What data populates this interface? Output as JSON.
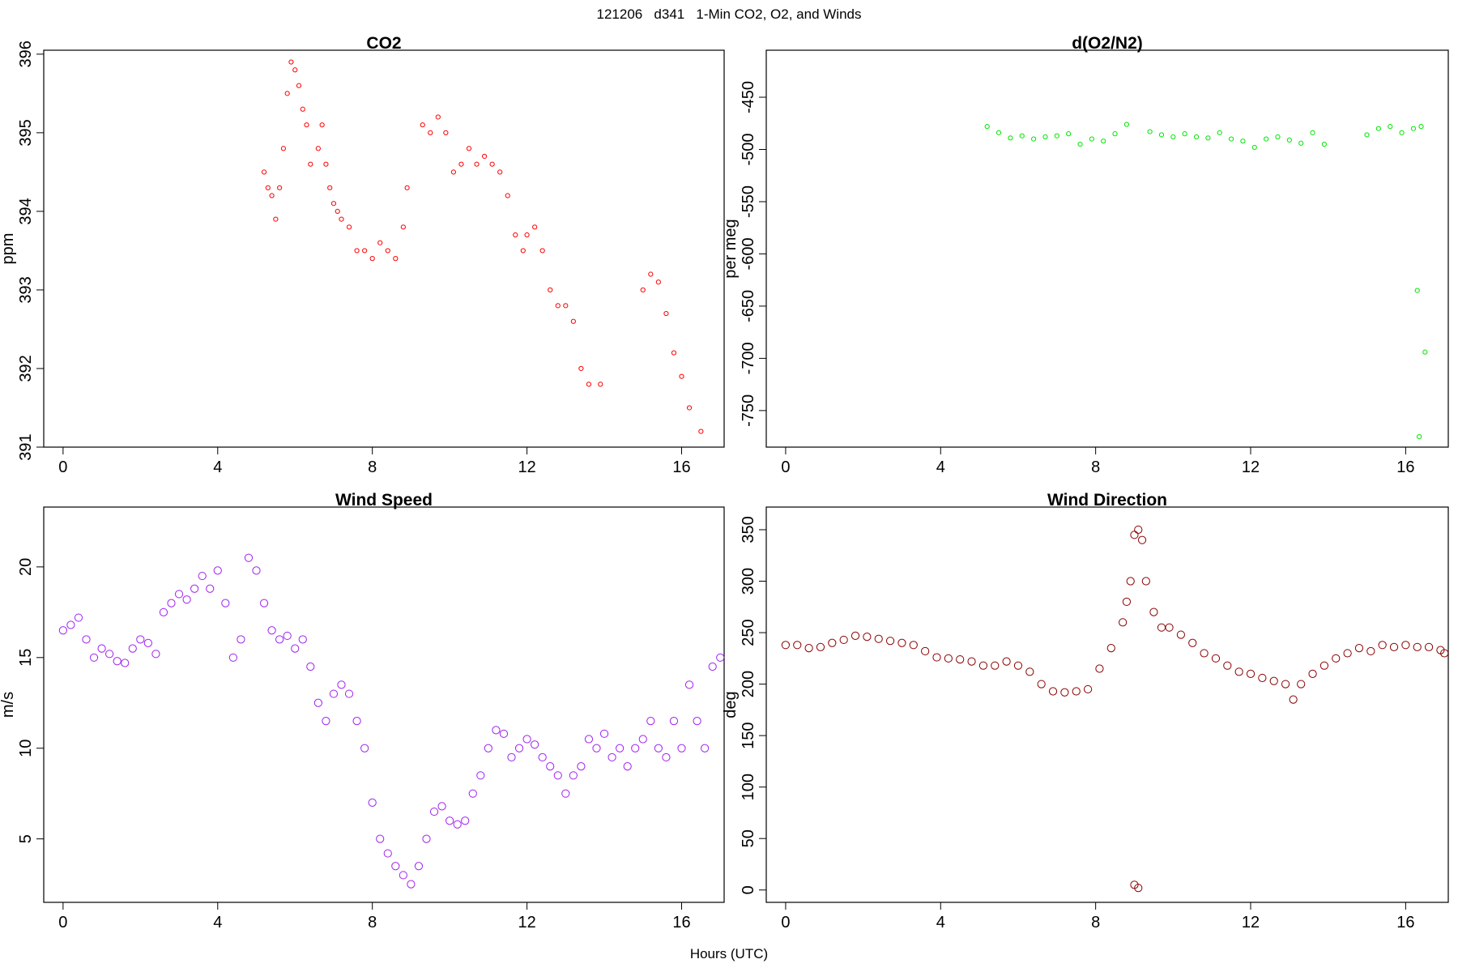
{
  "title": "121206   d341   1-Min CO2, O2, and Winds",
  "xlabel": "Hours (UTC)",
  "chart_data": [
    {
      "type": "scatter",
      "title": "CO2",
      "ylabel": "ppm",
      "xlim": [
        -0.5,
        17.1
      ],
      "ylim": [
        391,
        396.05
      ],
      "xticks": [
        0,
        4,
        8,
        12,
        16
      ],
      "yticks": [
        391,
        392,
        393,
        394,
        395,
        396
      ],
      "color": "#ff0000",
      "x": [
        5.2,
        5.3,
        5.4,
        5.5,
        5.6,
        5.7,
        5.8,
        5.9,
        6.0,
        6.1,
        6.2,
        6.3,
        6.4,
        6.6,
        6.7,
        6.8,
        6.9,
        7.0,
        7.1,
        7.2,
        7.4,
        7.6,
        7.8,
        8.0,
        8.2,
        8.4,
        8.6,
        8.8,
        8.9,
        9.3,
        9.5,
        9.7,
        9.9,
        10.1,
        10.3,
        10.5,
        10.7,
        10.9,
        11.1,
        11.3,
        11.5,
        11.7,
        11.9,
        12.0,
        12.2,
        12.4,
        12.6,
        12.8,
        13.0,
        13.2,
        13.4,
        13.6,
        13.9,
        15.0,
        15.2,
        15.4,
        15.6,
        15.8,
        16.0,
        16.2,
        16.5
      ],
      "y": [
        394.5,
        394.3,
        394.2,
        393.9,
        394.3,
        394.8,
        395.5,
        395.9,
        395.8,
        395.6,
        395.3,
        395.1,
        394.6,
        394.8,
        395.1,
        394.6,
        394.3,
        394.1,
        394.0,
        393.9,
        393.8,
        393.5,
        393.5,
        393.4,
        393.6,
        393.5,
        393.4,
        393.8,
        394.3,
        395.1,
        395.0,
        395.2,
        395.0,
        394.5,
        394.6,
        394.8,
        394.6,
        394.7,
        394.6,
        394.5,
        394.2,
        393.7,
        393.5,
        393.7,
        393.8,
        393.5,
        393.0,
        392.8,
        392.8,
        392.6,
        392.0,
        391.8,
        391.8,
        393.0,
        393.2,
        393.1,
        392.7,
        392.2,
        391.9,
        391.5,
        391.2
      ]
    },
    {
      "type": "scatter",
      "title": "d(O2/N2)",
      "ylabel": "per meg",
      "xlim": [
        -0.5,
        17.1
      ],
      "ylim": [
        -785,
        -405
      ],
      "xticks": [
        0,
        4,
        8,
        12,
        16
      ],
      "yticks": [
        -750,
        -700,
        -650,
        -600,
        -550,
        -500,
        -450
      ],
      "color": "#00e600",
      "x": [
        5.2,
        5.5,
        5.8,
        6.1,
        6.4,
        6.7,
        7.0,
        7.3,
        7.6,
        7.9,
        8.2,
        8.5,
        8.8,
        9.4,
        9.7,
        10.0,
        10.3,
        10.6,
        10.9,
        11.2,
        11.5,
        11.8,
        12.1,
        12.4,
        12.7,
        13.0,
        13.3,
        13.6,
        13.9,
        15.0,
        15.3,
        15.6,
        15.9,
        16.2,
        16.4,
        16.3,
        16.35,
        16.5
      ],
      "y": [
        -478,
        -484,
        -489,
        -487,
        -490,
        -488,
        -487,
        -485,
        -495,
        -490,
        -492,
        -485,
        -476,
        -483,
        -486,
        -488,
        -485,
        -488,
        -489,
        -484,
        -490,
        -492,
        -498,
        -490,
        -488,
        -491,
        -494,
        -484,
        -495,
        -486,
        -480,
        -478,
        -484,
        -480,
        -478,
        -635,
        -775,
        -694
      ]
    },
    {
      "type": "scatter",
      "title": "Wind Speed",
      "ylabel": "m/s",
      "xlim": [
        -0.5,
        17.1
      ],
      "ylim": [
        1.5,
        23.3
      ],
      "xticks": [
        0,
        4,
        8,
        12,
        16
      ],
      "yticks": [
        5,
        10,
        15,
        20
      ],
      "color": "#a020f0",
      "x": [
        0.0,
        0.2,
        0.4,
        0.6,
        0.8,
        1.0,
        1.2,
        1.4,
        1.6,
        1.8,
        2.0,
        2.2,
        2.4,
        2.6,
        2.8,
        3.0,
        3.2,
        3.4,
        3.6,
        3.8,
        4.0,
        4.2,
        4.4,
        4.6,
        4.8,
        5.0,
        5.2,
        5.4,
        5.6,
        5.8,
        6.0,
        6.2,
        6.4,
        6.6,
        6.8,
        7.0,
        7.2,
        7.4,
        7.6,
        7.8,
        8.0,
        8.2,
        8.4,
        8.6,
        8.8,
        9.0,
        9.2,
        9.4,
        9.6,
        9.8,
        10.0,
        10.2,
        10.4,
        10.6,
        10.8,
        11.0,
        11.2,
        11.4,
        11.6,
        11.8,
        12.0,
        12.2,
        12.4,
        12.6,
        12.8,
        13.0,
        13.2,
        13.4,
        13.6,
        13.8,
        14.0,
        14.2,
        14.4,
        14.6,
        14.8,
        15.0,
        15.2,
        15.4,
        15.6,
        15.8,
        16.0,
        16.2,
        16.4,
        16.6,
        16.8,
        17.0
      ],
      "y": [
        16.5,
        16.8,
        17.2,
        16.0,
        15.0,
        15.5,
        15.2,
        14.8,
        14.7,
        15.5,
        16.0,
        15.8,
        15.2,
        17.5,
        18.0,
        18.5,
        18.2,
        18.8,
        19.5,
        18.8,
        19.8,
        18.0,
        15.0,
        16.0,
        20.5,
        19.8,
        18.0,
        16.5,
        16.0,
        16.2,
        15.5,
        16.0,
        14.5,
        12.5,
        11.5,
        13.0,
        13.5,
        13.0,
        11.5,
        10.0,
        7.0,
        5.0,
        4.2,
        3.5,
        3.0,
        2.5,
        3.5,
        5.0,
        6.5,
        6.8,
        6.0,
        5.8,
        6.0,
        7.5,
        8.5,
        10.0,
        11.0,
        10.8,
        9.5,
        10.0,
        10.5,
        10.2,
        9.5,
        9.0,
        8.5,
        7.5,
        8.5,
        9.0,
        10.5,
        10.0,
        10.8,
        9.5,
        10.0,
        9.0,
        10.0,
        10.5,
        11.5,
        10.0,
        9.5,
        11.5,
        10.0,
        13.5,
        11.5,
        10.0,
        14.5,
        15.0
      ]
    },
    {
      "type": "scatter",
      "title": "Wind Direction",
      "ylabel": "deg",
      "xlim": [
        -0.5,
        17.1
      ],
      "ylim": [
        -12,
        372
      ],
      "xticks": [
        0,
        4,
        8,
        12,
        16
      ],
      "yticks": [
        0,
        50,
        100,
        150,
        200,
        250,
        300,
        350
      ],
      "color": "#8b0000",
      "x": [
        0.0,
        0.3,
        0.6,
        0.9,
        1.2,
        1.5,
        1.8,
        2.1,
        2.4,
        2.7,
        3.0,
        3.3,
        3.6,
        3.9,
        4.2,
        4.5,
        4.8,
        5.1,
        5.4,
        5.7,
        6.0,
        6.3,
        6.6,
        6.9,
        7.2,
        7.5,
        7.8,
        8.1,
        8.4,
        8.7,
        8.8,
        8.9,
        9.0,
        9.1,
        9.2,
        9.3,
        9.5,
        9.7,
        9.9,
        10.2,
        10.5,
        10.8,
        11.1,
        11.4,
        11.7,
        12.0,
        12.3,
        12.6,
        12.9,
        13.1,
        13.3,
        13.6,
        13.9,
        14.2,
        14.5,
        14.8,
        15.1,
        15.4,
        15.7,
        16.0,
        16.3,
        16.6,
        16.9,
        17.0,
        9.0,
        9.1
      ],
      "y": [
        238,
        238,
        235,
        236,
        240,
        243,
        247,
        246,
        244,
        242,
        240,
        238,
        232,
        226,
        225,
        224,
        222,
        218,
        218,
        222,
        218,
        212,
        200,
        193,
        192,
        193,
        195,
        215,
        235,
        260,
        280,
        300,
        345,
        350,
        340,
        300,
        270,
        255,
        255,
        248,
        240,
        230,
        225,
        218,
        212,
        210,
        206,
        203,
        200,
        185,
        200,
        210,
        218,
        225,
        230,
        235,
        232,
        238,
        236,
        238,
        236,
        236,
        233,
        230,
        5,
        2
      ]
    }
  ]
}
